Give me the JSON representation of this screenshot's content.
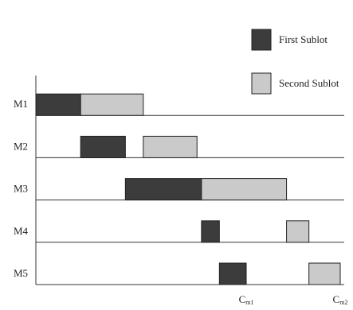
{
  "chart_data": {
    "type": "gantt",
    "categories": [
      "M1",
      "M2",
      "M3",
      "M4",
      "M5"
    ],
    "series": [
      {
        "name": "First Sublot",
        "color": "#3c3c3c",
        "starts": [
          0,
          10,
          20,
          37,
          41
        ],
        "ends": [
          10,
          20,
          37,
          41,
          47
        ]
      },
      {
        "name": "Second Sublot",
        "color": "#cacaca",
        "starts": [
          10,
          24,
          37,
          56,
          61
        ],
        "ends": [
          24,
          36,
          56,
          61,
          68
        ]
      }
    ],
    "markers": [
      {
        "label": "C",
        "sub": "m1",
        "value": 47
      },
      {
        "label": "C",
        "sub": "m2",
        "value": 68
      }
    ],
    "xlim": [
      0,
      68
    ]
  }
}
